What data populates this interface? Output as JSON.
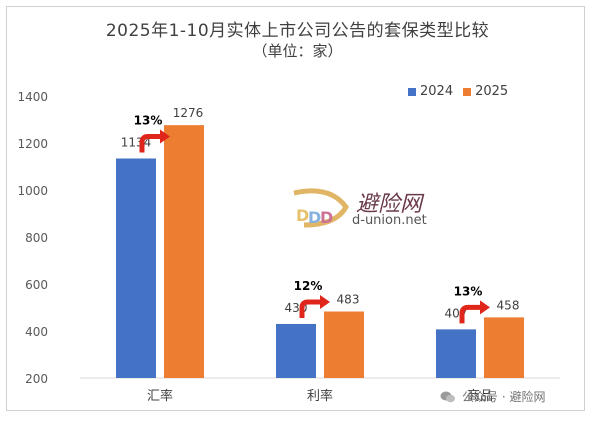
{
  "title": "2025年1-10月实体上市公司公告的套保类型比较",
  "subtitle": "（单位：家）",
  "legend": [
    {
      "name": "2024",
      "color": "#4472C4"
    },
    {
      "name": "2025",
      "color": "#ED7D31"
    }
  ],
  "watermark": {
    "cn": "避险网",
    "en": "d-union.net"
  },
  "footer": {
    "text": "公众号 · 避险网",
    "icon": "wechat-icon"
  },
  "chart_data": {
    "type": "bar",
    "categories": [
      "汇率",
      "利率",
      "商品"
    ],
    "series": [
      {
        "name": "2024",
        "values": [
          1134,
          430,
          407
        ],
        "color": "#4472C4"
      },
      {
        "name": "2025",
        "values": [
          1276,
          483,
          458
        ],
        "color": "#ED7D31"
      }
    ],
    "growth_labels": [
      "13%",
      "12%",
      "13%"
    ],
    "ylim": [
      200,
      1400
    ],
    "yticks": [
      200,
      400,
      600,
      800,
      1000,
      1200,
      1400
    ],
    "grid": false,
    "legend_position": "top-right"
  }
}
